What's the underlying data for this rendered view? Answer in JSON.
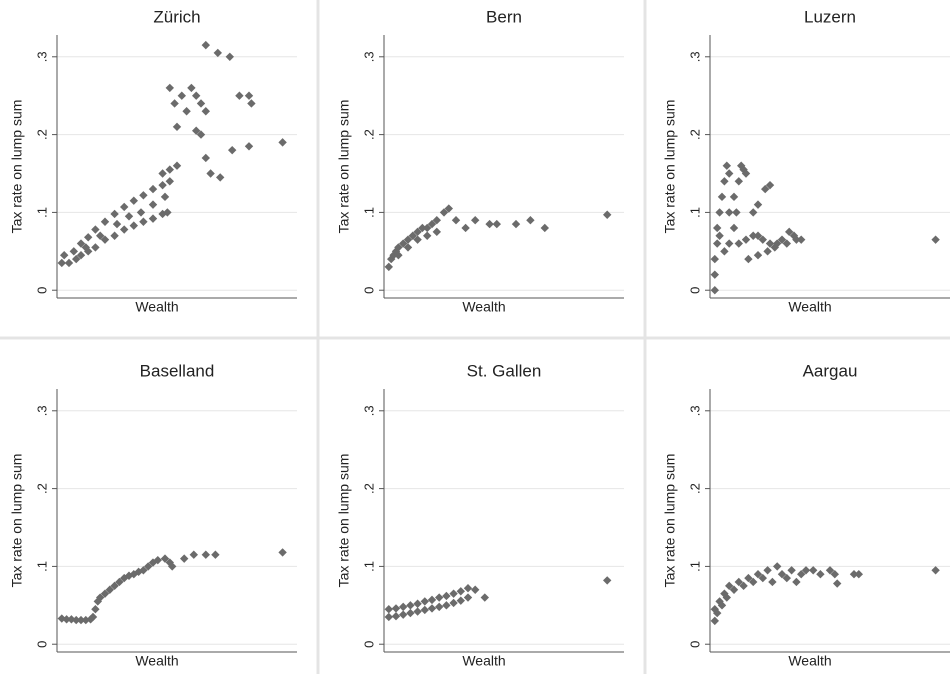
{
  "chart_data": [
    {
      "type": "scatter",
      "title": "Zürich",
      "x_label": "Wealth",
      "y_label": "Tax rate on lump sum",
      "color": "#6b6b6b",
      "grid": true,
      "xlim": [
        0,
        100
      ],
      "ylim": [
        -0.01,
        0.328
      ],
      "yticks": [
        0,
        {
          "value": 0.1,
          "label": ".1"
        },
        {
          "value": 0.2,
          "label": ".2"
        },
        {
          "value": 0.3,
          "label": ".3"
        }
      ],
      "x": [
        2,
        5,
        8,
        10,
        13,
        16,
        20,
        24,
        28,
        32,
        36,
        40,
        44,
        46,
        3,
        7,
        10,
        13,
        16,
        20,
        24,
        28,
        32,
        36,
        40,
        44,
        47,
        12,
        18,
        25,
        30,
        35,
        40,
        45,
        44,
        47,
        50,
        47,
        49,
        52,
        54,
        56,
        58,
        60,
        62,
        62,
        67,
        72,
        76,
        80,
        81,
        50,
        58,
        60,
        62,
        64,
        68,
        73,
        80,
        94
      ],
      "values": [
        0.035,
        0.035,
        0.04,
        0.045,
        0.05,
        0.055,
        0.065,
        0.07,
        0.078,
        0.083,
        0.088,
        0.092,
        0.098,
        0.1,
        0.045,
        0.05,
        0.06,
        0.068,
        0.078,
        0.088,
        0.098,
        0.107,
        0.115,
        0.122,
        0.13,
        0.135,
        0.14,
        0.055,
        0.07,
        0.085,
        0.095,
        0.1,
        0.11,
        0.12,
        0.15,
        0.155,
        0.16,
        0.26,
        0.24,
        0.25,
        0.23,
        0.26,
        0.25,
        0.24,
        0.23,
        0.315,
        0.305,
        0.3,
        0.25,
        0.25,
        0.24,
        0.21,
        0.205,
        0.2,
        0.17,
        0.15,
        0.145,
        0.18,
        0.185,
        0.19
      ]
    },
    {
      "type": "scatter",
      "title": "Bern",
      "x_label": "Wealth",
      "y_label": "Tax rate on lump sum",
      "color": "#6b6b6b",
      "grid": true,
      "xlim": [
        0,
        100
      ],
      "ylim": [
        -0.01,
        0.328
      ],
      "yticks": [
        0,
        {
          "value": 0.1,
          "label": ".1"
        },
        {
          "value": 0.2,
          "label": ".2"
        },
        {
          "value": 0.3,
          "label": ".3"
        }
      ],
      "x": [
        2,
        3,
        4,
        5,
        6,
        8,
        10,
        12,
        14,
        16,
        18,
        20,
        22,
        25,
        27,
        6,
        10,
        14,
        18,
        22,
        30,
        34,
        38,
        44,
        47,
        55,
        61,
        67,
        93
      ],
      "values": [
        0.03,
        0.04,
        0.045,
        0.05,
        0.055,
        0.06,
        0.065,
        0.07,
        0.075,
        0.08,
        0.08,
        0.085,
        0.09,
        0.1,
        0.105,
        0.045,
        0.055,
        0.065,
        0.07,
        0.075,
        0.09,
        0.08,
        0.09,
        0.085,
        0.085,
        0.085,
        0.09,
        0.08,
        0.097
      ]
    },
    {
      "type": "scatter",
      "title": "Luzern",
      "x_label": "Wealth",
      "y_label": "Tax rate on lump sum",
      "color": "#6b6b6b",
      "grid": true,
      "xlim": [
        0,
        100
      ],
      "ylim": [
        -0.01,
        0.328
      ],
      "yticks": [
        0,
        {
          "value": 0.1,
          "label": ".1"
        },
        {
          "value": 0.2,
          "label": ".2"
        },
        {
          "value": 0.3,
          "label": ".3"
        }
      ],
      "x": [
        2,
        2,
        2,
        3,
        3,
        4,
        5,
        6,
        7,
        8,
        10,
        11,
        12,
        13,
        14,
        15,
        10,
        8,
        12,
        15,
        18,
        20,
        22,
        25,
        27,
        30,
        32,
        35,
        36,
        18,
        20,
        23,
        25,
        28,
        24,
        20,
        16,
        6,
        4,
        8,
        94,
        38,
        33
      ],
      "values": [
        0,
        0.02,
        0.04,
        0.06,
        0.08,
        0.1,
        0.12,
        0.14,
        0.16,
        0.15,
        0.12,
        0.1,
        0.14,
        0.16,
        0.155,
        0.15,
        0.08,
        0.06,
        0.06,
        0.065,
        0.07,
        0.07,
        0.065,
        0.06,
        0.055,
        0.065,
        0.06,
        0.07,
        0.065,
        0.1,
        0.11,
        0.13,
        0.135,
        0.06,
        0.05,
        0.045,
        0.04,
        0.05,
        0.07,
        0.1,
        0.065,
        0.065,
        0.075
      ]
    },
    {
      "type": "scatter",
      "title": "Baselland",
      "x_label": "Wealth",
      "y_label": "Tax rate on lump sum",
      "color": "#6b6b6b",
      "grid": true,
      "xlim": [
        0,
        100
      ],
      "ylim": [
        -0.01,
        0.328
      ],
      "yticks": [
        0,
        {
          "value": 0.1,
          "label": ".1"
        },
        {
          "value": 0.2,
          "label": ".2"
        },
        {
          "value": 0.3,
          "label": ".3"
        }
      ],
      "x": [
        2,
        4,
        6,
        8,
        10,
        12,
        14,
        15,
        16,
        17,
        18,
        20,
        22,
        24,
        26,
        28,
        30,
        32,
        34,
        36,
        38,
        40,
        42,
        45,
        47,
        48,
        53,
        57,
        62,
        66,
        94
      ],
      "values": [
        0.033,
        0.032,
        0.032,
        0.031,
        0.031,
        0.031,
        0.032,
        0.035,
        0.045,
        0.055,
        0.06,
        0.065,
        0.07,
        0.075,
        0.08,
        0.085,
        0.088,
        0.09,
        0.093,
        0.095,
        0.1,
        0.105,
        0.108,
        0.11,
        0.105,
        0.1,
        0.11,
        0.115,
        0.115,
        0.115,
        0.118
      ]
    },
    {
      "type": "scatter",
      "title": "St. Gallen",
      "x_label": "Wealth",
      "y_label": "Tax rate on lump sum",
      "color": "#6b6b6b",
      "grid": true,
      "xlim": [
        0,
        100
      ],
      "ylim": [
        -0.01,
        0.328
      ],
      "yticks": [
        0,
        {
          "value": 0.1,
          "label": ".1"
        },
        {
          "value": 0.2,
          "label": ".2"
        },
        {
          "value": 0.3,
          "label": ".3"
        }
      ],
      "x": [
        2,
        2,
        5,
        5,
        8,
        8,
        11,
        11,
        14,
        14,
        17,
        17,
        20,
        20,
        23,
        23,
        26,
        26,
        29,
        29,
        32,
        32,
        35,
        35,
        38,
        42,
        93
      ],
      "values": [
        0.035,
        0.045,
        0.036,
        0.046,
        0.038,
        0.048,
        0.04,
        0.05,
        0.042,
        0.052,
        0.044,
        0.055,
        0.046,
        0.057,
        0.048,
        0.06,
        0.05,
        0.062,
        0.053,
        0.065,
        0.056,
        0.068,
        0.06,
        0.072,
        0.07,
        0.06,
        0.082
      ]
    },
    {
      "type": "scatter",
      "title": "Aargau",
      "x_label": "Wealth",
      "y_label": "Tax rate on lump sum",
      "color": "#6b6b6b",
      "grid": true,
      "xlim": [
        0,
        100
      ],
      "ylim": [
        -0.01,
        0.328
      ],
      "yticks": [
        0,
        {
          "value": 0.1,
          "label": ".1"
        },
        {
          "value": 0.2,
          "label": ".2"
        },
        {
          "value": 0.3,
          "label": ".3"
        }
      ],
      "x": [
        2,
        2,
        3,
        4,
        5,
        6,
        7,
        8,
        10,
        12,
        14,
        16,
        18,
        20,
        22,
        24,
        26,
        28,
        30,
        32,
        34,
        36,
        38,
        40,
        43,
        46,
        50,
        52,
        53,
        60,
        62,
        94
      ],
      "values": [
        0.03,
        0.045,
        0.04,
        0.055,
        0.05,
        0.065,
        0.06,
        0.075,
        0.07,
        0.08,
        0.075,
        0.085,
        0.08,
        0.09,
        0.085,
        0.095,
        0.08,
        0.1,
        0.09,
        0.085,
        0.095,
        0.08,
        0.09,
        0.095,
        0.095,
        0.09,
        0.095,
        0.09,
        0.078,
        0.09,
        0.09,
        0.095
      ]
    }
  ]
}
